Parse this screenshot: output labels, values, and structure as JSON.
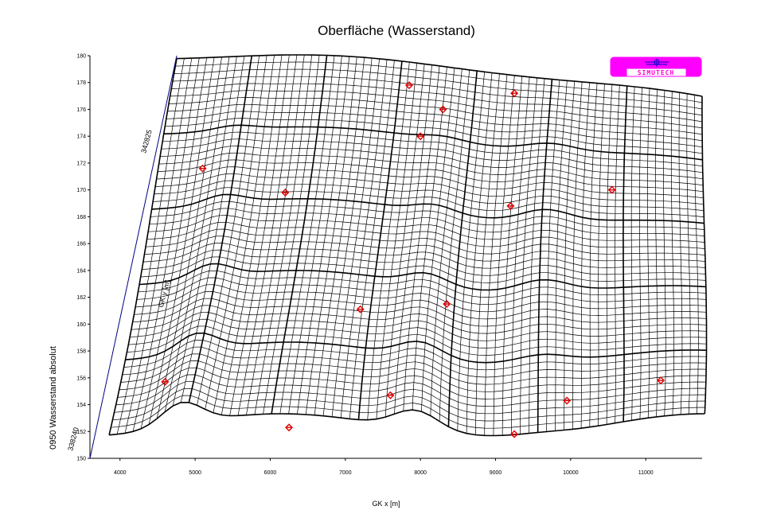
{
  "chart_data": {
    "type": "surface-wireframe",
    "title": "Oberfläche (Wasserstand)",
    "xlabel": "GK x [m]",
    "ylabel": "0950 Wasserstand absolut",
    "depth_axis_label": "GK y [m]",
    "depth_tick_labels": [
      "338240",
      "342825"
    ],
    "x_tick_labels": [
      "4000",
      "5000",
      "6000",
      "7000",
      "8000",
      "9000",
      "10000",
      "11000"
    ],
    "x_ticks": [
      4000,
      5000,
      6000,
      7000,
      8000,
      9000,
      10000,
      11000
    ],
    "xlim": [
      3600,
      11750
    ],
    "y_tick_labels": [
      "150",
      "152",
      "154",
      "156",
      "158",
      "160",
      "162",
      "164",
      "166",
      "168",
      "170",
      "172",
      "174",
      "176",
      "178",
      "180"
    ],
    "y_ticks": [
      150,
      152,
      154,
      156,
      158,
      160,
      162,
      164,
      166,
      168,
      170,
      172,
      174,
      176,
      178,
      180
    ],
    "ylim": [
      150,
      180
    ],
    "markers": [
      {
        "x": 4600,
        "y": 155.7
      },
      {
        "x": 5100,
        "y": 171.6
      },
      {
        "x": 6200,
        "y": 169.8
      },
      {
        "x": 6250,
        "y": 152.3
      },
      {
        "x": 7200,
        "y": 161.1
      },
      {
        "x": 7600,
        "y": 154.7
      },
      {
        "x": 7850,
        "y": 177.8
      },
      {
        "x": 8000,
        "y": 174.0
      },
      {
        "x": 8300,
        "y": 176.0
      },
      {
        "x": 8350,
        "y": 161.5
      },
      {
        "x": 9200,
        "y": 168.8
      },
      {
        "x": 9250,
        "y": 177.2
      },
      {
        "x": 9250,
        "y": 151.8
      },
      {
        "x": 9950,
        "y": 154.3
      },
      {
        "x": 10550,
        "y": 170.0
      },
      {
        "x": 11200,
        "y": 155.8
      }
    ],
    "marker_color": "#e00000",
    "line_color": "#000000",
    "edge_line_color": "#000080"
  },
  "logo": {
    "text": "SIMUTECH",
    "frame_color": "#ff00ff",
    "text_color": "#ff00cc"
  }
}
